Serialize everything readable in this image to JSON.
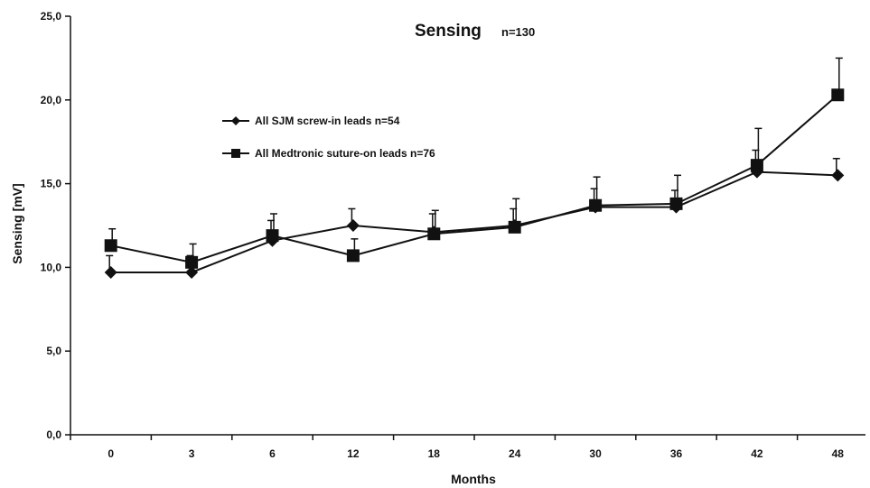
{
  "chart_data": {
    "type": "line",
    "title": "Sensing",
    "subtitle": "n=130",
    "xlabel": "Months",
    "ylabel": "Sensing [mV]",
    "categories": [
      "0",
      "3",
      "6",
      "12",
      "18",
      "24",
      "30",
      "36",
      "42",
      "48"
    ],
    "ylim": [
      0,
      25
    ],
    "yticks": [
      "0,0",
      "5,0",
      "10,0",
      "15,0",
      "20,0",
      "25,0"
    ],
    "grid": false,
    "legend_position": "upper-left",
    "series": [
      {
        "name": "All SJM screw-in leads n=54",
        "marker": "diamond",
        "color": "#111111",
        "values": [
          9.7,
          9.7,
          11.6,
          12.5,
          12.1,
          12.5,
          13.6,
          13.6,
          15.7,
          15.5
        ],
        "error": [
          1.0,
          1.0,
          1.2,
          1.0,
          1.1,
          1.0,
          1.1,
          1.0,
          1.3,
          1.0
        ]
      },
      {
        "name": "All Medtronic suture-on leads n=76",
        "marker": "square",
        "color": "#111111",
        "values": [
          11.3,
          10.3,
          11.9,
          10.7,
          12.0,
          12.4,
          13.7,
          13.8,
          16.1,
          20.3
        ],
        "error": [
          1.0,
          1.1,
          1.3,
          1.0,
          1.4,
          1.7,
          1.7,
          1.7,
          2.2,
          2.2
        ]
      }
    ]
  }
}
